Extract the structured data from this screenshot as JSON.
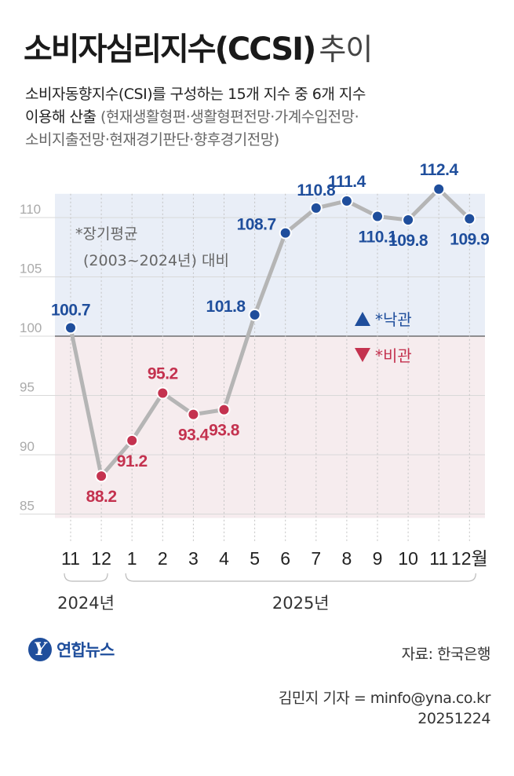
{
  "title": {
    "main": "소비자심리지수(CCSI)",
    "sub": "추이"
  },
  "subtitle": {
    "line1": "소비자동향지수(CSI)를 구성하는 15개 지수 중 6개 지수",
    "line2a": "이용해 산출",
    "line2b": "(현재생활형편·생활형편전망·가계수입전망·",
    "line3": "소비지출전망·현재경기판단·향후경기전망)"
  },
  "note": {
    "line1": "*장기평균",
    "line2": "(2003~2024년) 대비"
  },
  "legend": {
    "optimistic": "*낙관",
    "pessimistic": "*비관"
  },
  "colors": {
    "optimistic": "#1f4e9c",
    "pessimistic": "#c4324f",
    "line": "#b5b5b5",
    "band_above": "#e9eef7",
    "band_below": "#f6ecee"
  },
  "chart_data": {
    "type": "line",
    "categories": [
      "11",
      "12",
      "1",
      "2",
      "3",
      "4",
      "5",
      "6",
      "7",
      "8",
      "9",
      "10",
      "11",
      "12월"
    ],
    "values": [
      100.7,
      88.2,
      91.2,
      95.2,
      93.4,
      93.8,
      101.8,
      108.7,
      110.8,
      111.4,
      110.1,
      109.8,
      112.4,
      109.9
    ],
    "value_labels": [
      "100.7",
      "88.2",
      "91.2",
      "95.2",
      "93.4",
      "93.8",
      "101.8",
      "108.7",
      "110.8",
      "111.4",
      "110.1",
      "109.8",
      "112.4",
      "109.9"
    ],
    "ylim": [
      85,
      112
    ],
    "yticks": [
      "85",
      "90",
      "95",
      "100",
      "105",
      "110"
    ],
    "baseline": 100,
    "years": [
      {
        "label": "2024년",
        "start": 0,
        "end": 1
      },
      {
        "label": "2025년",
        "start": 2,
        "end": 13
      }
    ],
    "grid": true
  },
  "footer": {
    "logo_mark": "Y",
    "logo": "연합뉴스",
    "source": "자료: 한국은행",
    "credit": "김민지 기자 = minfo@yna.co.kr",
    "date": "20251224"
  }
}
